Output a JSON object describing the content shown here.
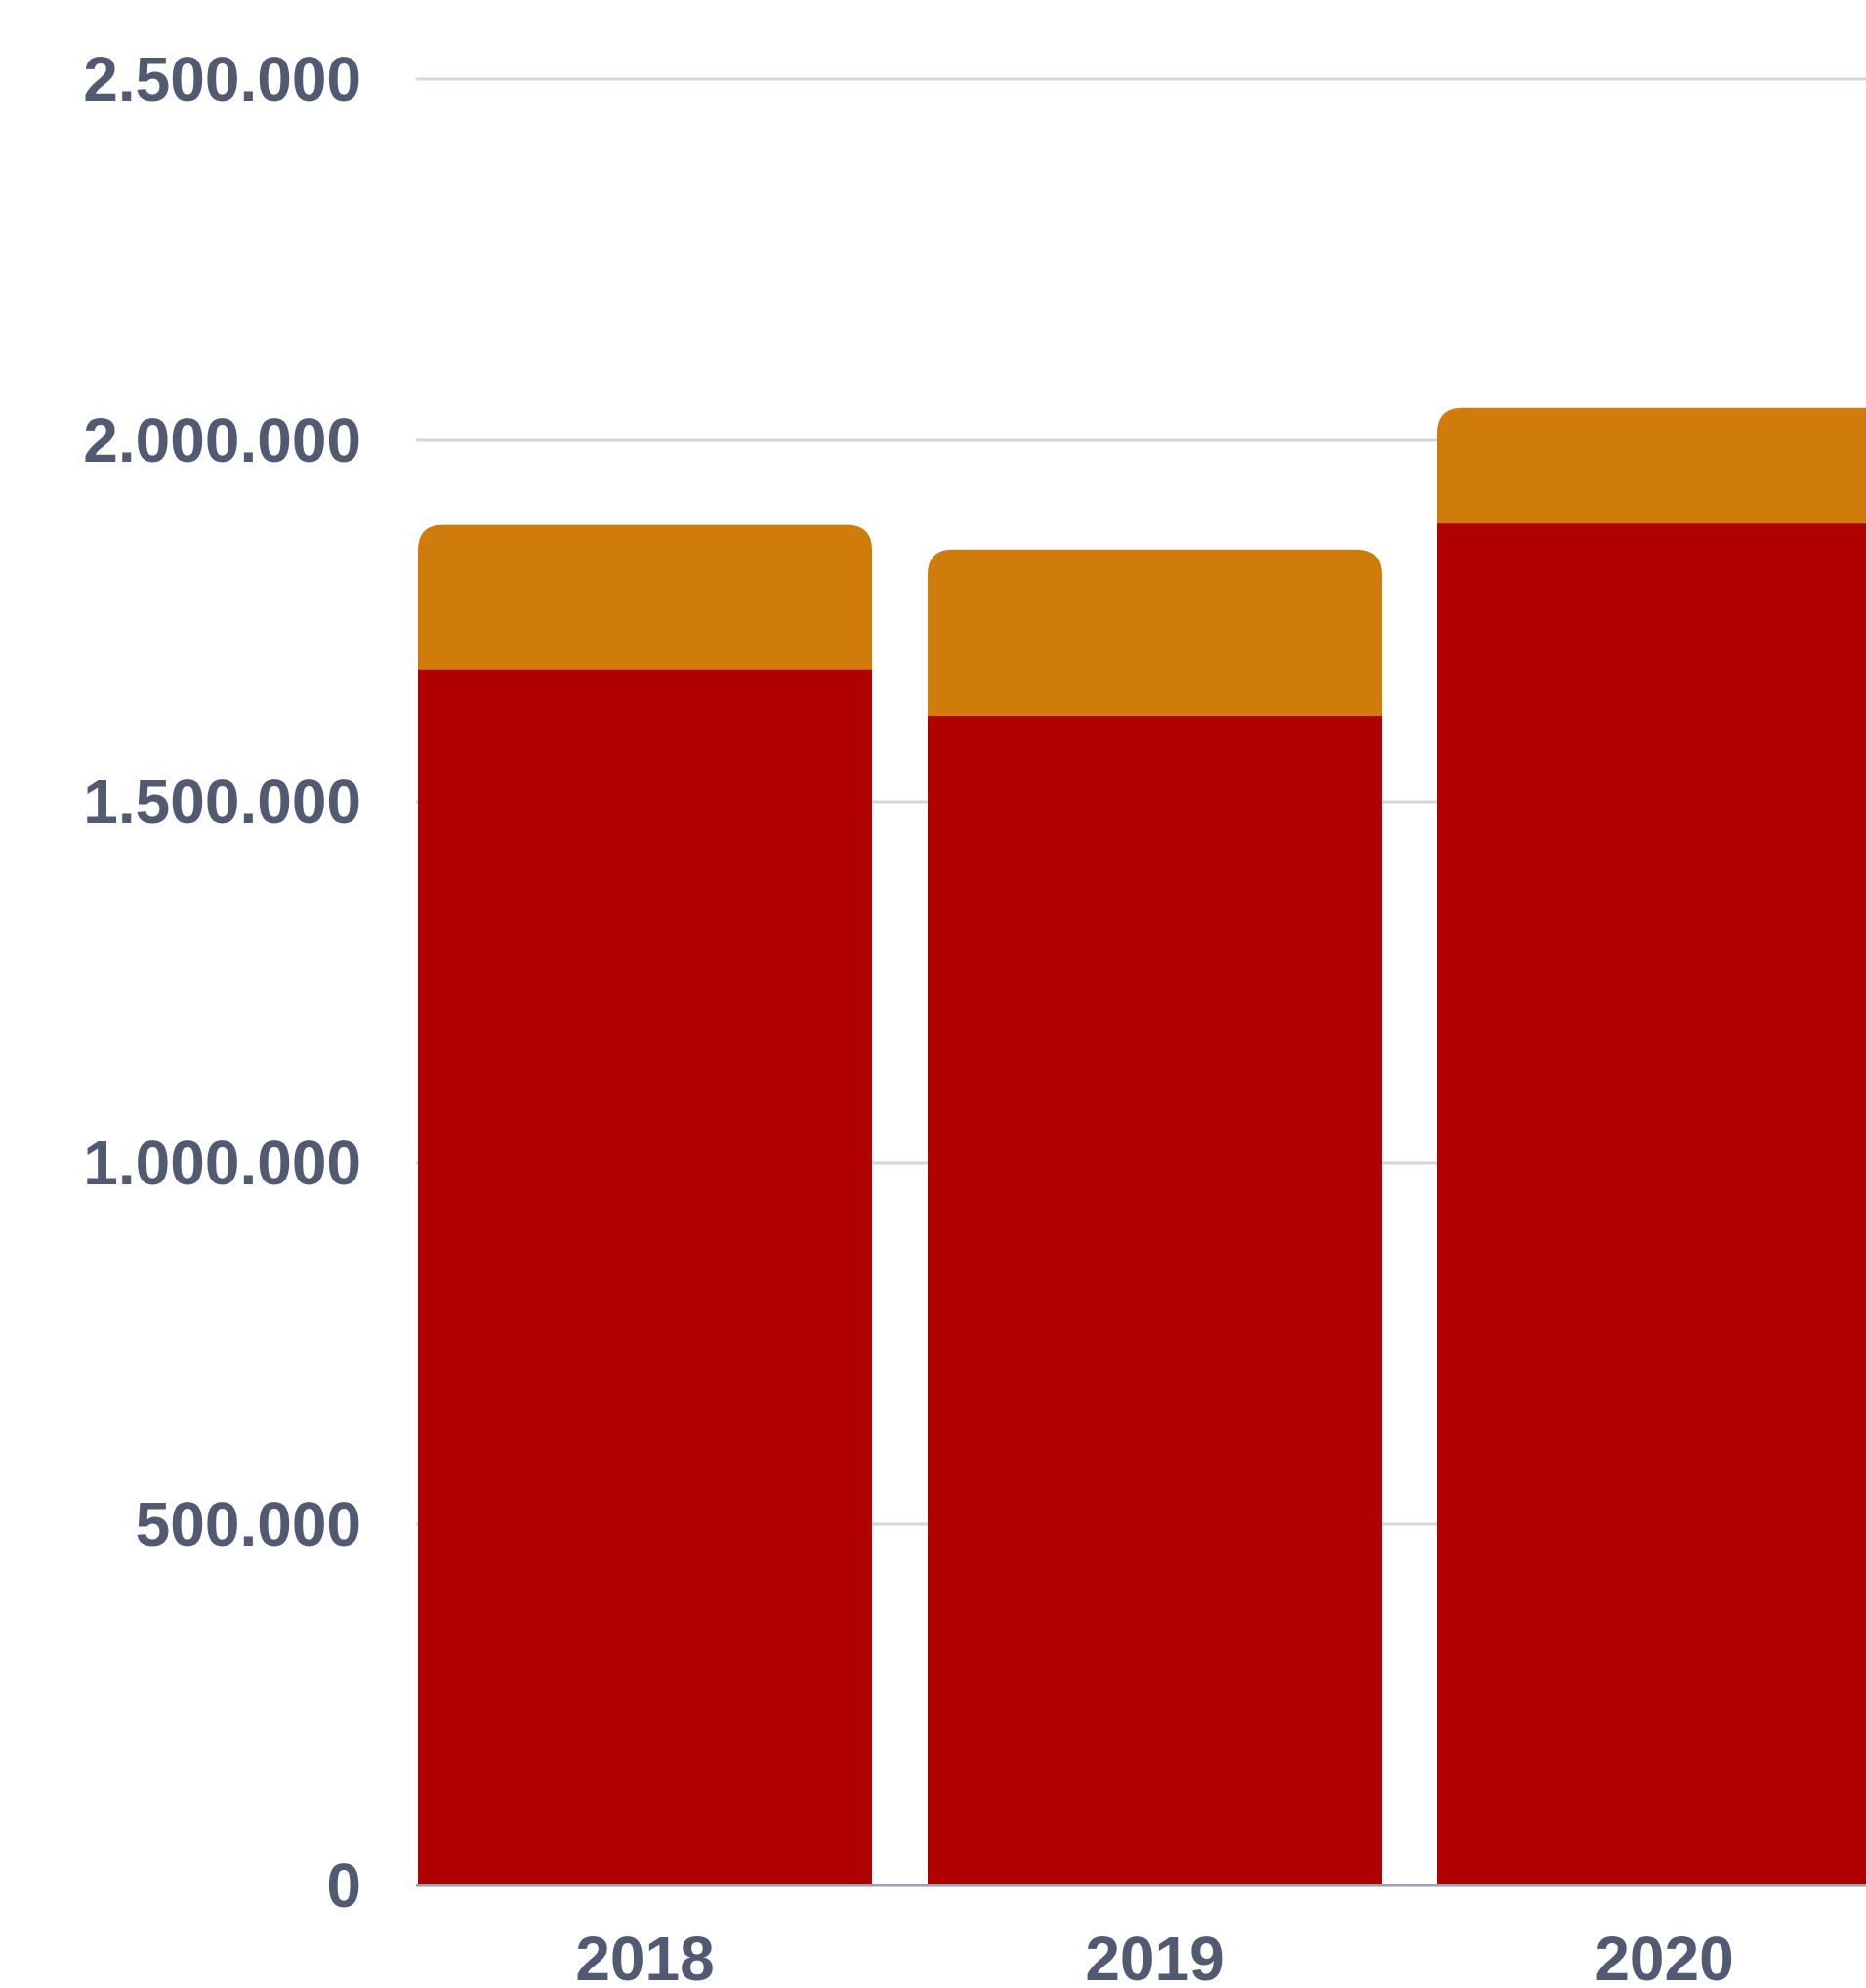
{
  "chart_data": {
    "type": "bar",
    "stacked": true,
    "categories": [
      "2018",
      "2019",
      "2020"
    ],
    "series": [
      {
        "values": [
          1683000,
          1619000,
          1885000
        ]
      },
      {
        "values": [
          200000,
          230000,
          160000
        ]
      }
    ],
    "y_ticks": [
      0,
      500000,
      1000000,
      1500000,
      2000000,
      2500000
    ],
    "y_tick_labels": [
      "0",
      "500.000",
      "1.000.000",
      "1.500.000",
      "2.000.000",
      "2.500.000"
    ],
    "ylim": [
      0,
      2500000
    ],
    "grid": true,
    "legend": "none",
    "colors": {
      "series": [
        "#b00000",
        "#cf7c0c"
      ],
      "grid": "#d4d6de",
      "axis": "#9aa0ae",
      "label": "#525a72",
      "background": "#ffffff"
    }
  }
}
